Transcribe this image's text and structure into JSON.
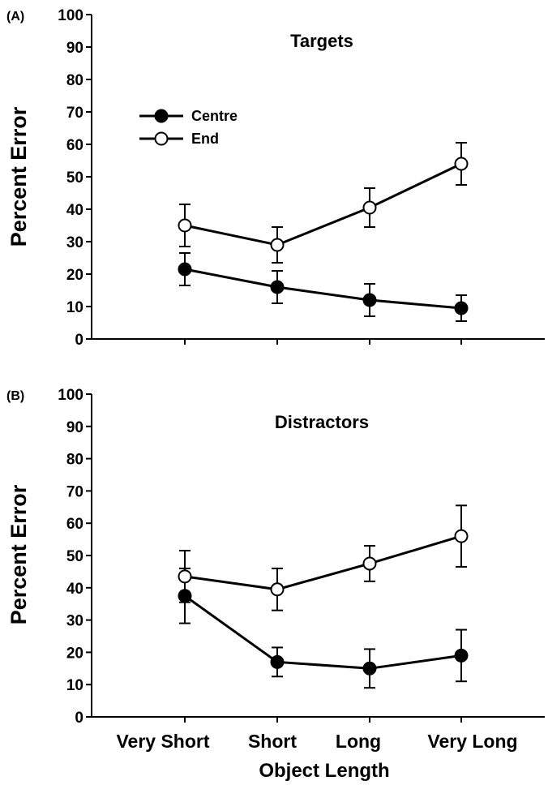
{
  "chart_data": [
    {
      "type": "line",
      "panel_label": "(A)",
      "title": "Targets",
      "ylabel": "Percent Error",
      "xlabel": "",
      "categories": [
        "Very Short",
        "Short",
        "Long",
        "Very Long"
      ],
      "ylim": [
        0,
        100
      ],
      "yticks": [
        "0",
        "10",
        "20",
        "30",
        "40",
        "50",
        "60",
        "70",
        "80",
        "90",
        "100"
      ],
      "grid": false,
      "legend": "top-left",
      "series": [
        {
          "name": "Centre",
          "marker": "filled",
          "color": "#000000",
          "values": [
            21.5,
            16,
            12,
            9.5
          ],
          "error": [
            5,
            5,
            5,
            4
          ]
        },
        {
          "name": "End",
          "marker": "open",
          "color": "#000000",
          "values": [
            35,
            29,
            40.5,
            54
          ],
          "error": [
            6.5,
            5.5,
            6,
            6.5
          ]
        }
      ]
    },
    {
      "type": "line",
      "panel_label": "(B)",
      "title": "Distractors",
      "ylabel": "Percent Error",
      "xlabel": "Object Length",
      "categories": [
        "Very Short",
        "Short",
        "Long",
        "Very Long"
      ],
      "ylim": [
        0,
        100
      ],
      "yticks": [
        "0",
        "10",
        "20",
        "30",
        "40",
        "50",
        "60",
        "70",
        "80",
        "90",
        "100"
      ],
      "grid": false,
      "legend": "none",
      "series": [
        {
          "name": "Centre",
          "marker": "filled",
          "color": "#000000",
          "values": [
            37.5,
            17,
            15,
            19
          ],
          "error": [
            8.5,
            4.5,
            6,
            8
          ]
        },
        {
          "name": "End",
          "marker": "open",
          "color": "#000000",
          "values": [
            43.5,
            39.5,
            47.5,
            56
          ],
          "error": [
            8,
            6.5,
            5.5,
            9.5
          ]
        }
      ]
    }
  ]
}
